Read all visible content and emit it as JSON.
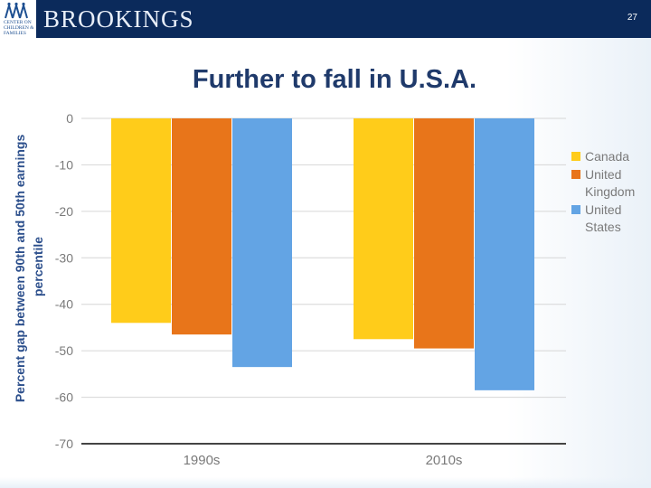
{
  "header": {
    "brand": "BROOKINGS",
    "logo_text": "CENTER ON CHILDREN & FAMILIES",
    "page_number": "27"
  },
  "slide": {
    "title": "Further to fall in U.S.A."
  },
  "colors": {
    "canada": "#ffcc1a",
    "uk": "#e8751a",
    "us": "#63a4e4",
    "header_bg": "#0b2a5b",
    "title": "#1f3a6b"
  },
  "chart_data": {
    "type": "bar",
    "categories": [
      "1990s",
      "2010s"
    ],
    "series": [
      {
        "name": "Canada",
        "values": [
          -44,
          -47.5
        ]
      },
      {
        "name": "United Kingdom",
        "values": [
          -46.5,
          -49.5
        ]
      },
      {
        "name": "United States",
        "values": [
          -53.5,
          -58.5
        ]
      }
    ],
    "legend_labels": [
      [
        "Canada"
      ],
      [
        "United",
        "Kingdom"
      ],
      [
        "United",
        "States"
      ]
    ],
    "ylabel_lines": [
      "Percent gap between 90th and 50th earnings",
      "percentile"
    ],
    "xlabel": "",
    "ylim": [
      -70,
      0
    ],
    "yticks": [
      0,
      -10,
      -20,
      -30,
      -40,
      -50,
      -60,
      -70
    ],
    "legend_position": "right"
  }
}
